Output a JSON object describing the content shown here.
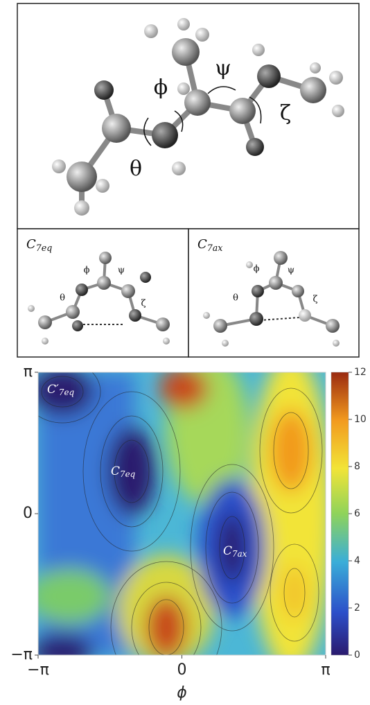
{
  "top_panel": {
    "angles": [
      "ϕ",
      "ψ",
      "ζ",
      "θ"
    ]
  },
  "conformers": [
    {
      "label": {
        "base": "C",
        "sub": "7eq"
      },
      "angles": [
        "ϕ",
        "ψ",
        "θ",
        "ζ"
      ]
    },
    {
      "label": {
        "base": "C",
        "sub": "7ax"
      },
      "angles": [
        "ϕ",
        "ψ",
        "θ",
        "ζ"
      ]
    }
  ],
  "plot": {
    "x_label": "ϕ",
    "xlim": [
      -3.1416,
      3.1416
    ],
    "ylim": [
      -3.1416,
      3.1416
    ],
    "xticks": [
      {
        "value": -3.1416,
        "label": "−π"
      },
      0,
      {
        "value": 3.1416,
        "label": "π"
      }
    ],
    "yticks": [
      {
        "value": -3.1416,
        "label": "−π"
      },
      0,
      {
        "value": 3.1416,
        "label": "π"
      }
    ],
    "colorbar": {
      "lim": [
        0,
        12
      ],
      "ticks": [
        0,
        2,
        4,
        6,
        8,
        10,
        12
      ]
    },
    "annotations": [
      {
        "base": "C′",
        "sub": "7eq"
      },
      {
        "base": "C",
        "sub": "7eq"
      },
      {
        "base": "C",
        "sub": "7ax"
      }
    ]
  }
}
